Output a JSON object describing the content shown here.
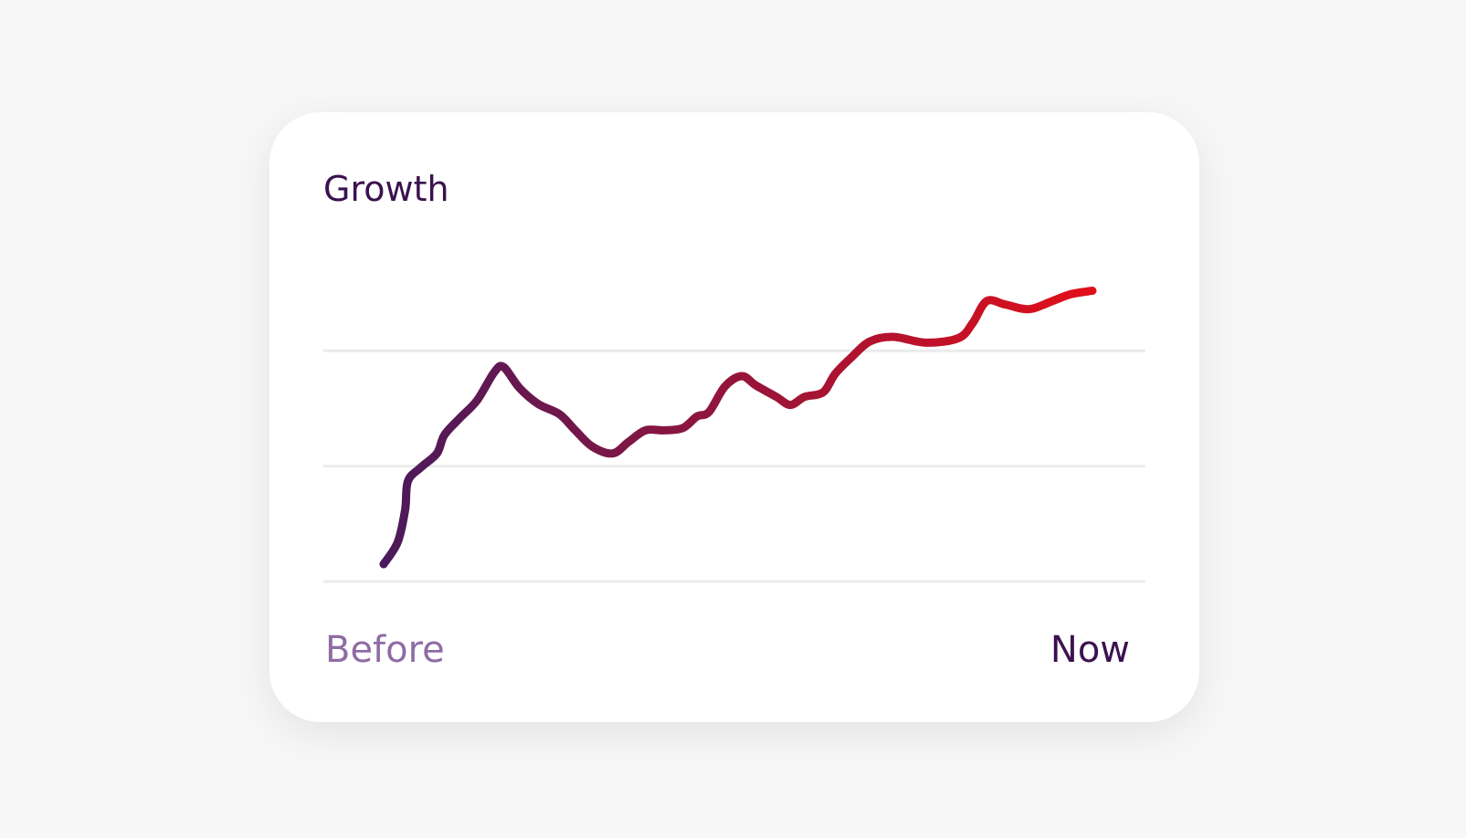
{
  "chart_data": {
    "type": "line",
    "title": "Growth",
    "start_label": "Before",
    "end_label": "Now",
    "x": [
      0,
      1.98,
      3.03,
      3.43,
      5.28,
      7.52,
      8.58,
      10.82,
      13.19,
      15.57,
      16.89,
      19.13,
      21.77,
      24.8,
      27.04,
      29.42,
      32.32,
      34.56,
      36.94,
      39.58,
      42.22,
      44.2,
      45.91,
      48.15,
      50.53,
      52.51,
      55.41,
      57.39,
      59.37,
      62.01,
      63.72,
      65.96,
      68.6,
      71.9,
      76.52,
      81.13,
      83.11,
      85.09,
      87.73,
      91.03,
      94.33,
      96.97,
      100
    ],
    "values": [
      0.15,
      0.34,
      0.62,
      0.87,
      0.99,
      1.11,
      1.27,
      1.42,
      1.57,
      1.81,
      1.86,
      1.68,
      1.54,
      1.45,
      1.31,
      1.17,
      1.11,
      1.21,
      1.31,
      1.31,
      1.33,
      1.43,
      1.47,
      1.69,
      1.78,
      1.7,
      1.6,
      1.53,
      1.6,
      1.64,
      1.8,
      1.94,
      2.08,
      2.12,
      2.07,
      2.11,
      2.24,
      2.43,
      2.4,
      2.36,
      2.43,
      2.49,
      2.52
    ],
    "xlim": [
      0,
      100
    ],
    "ylim": [
      0,
      2.6
    ],
    "gridlines": [
      0,
      1,
      2
    ],
    "color_start": "#4a1a5c",
    "color_end": "#e10f19"
  }
}
